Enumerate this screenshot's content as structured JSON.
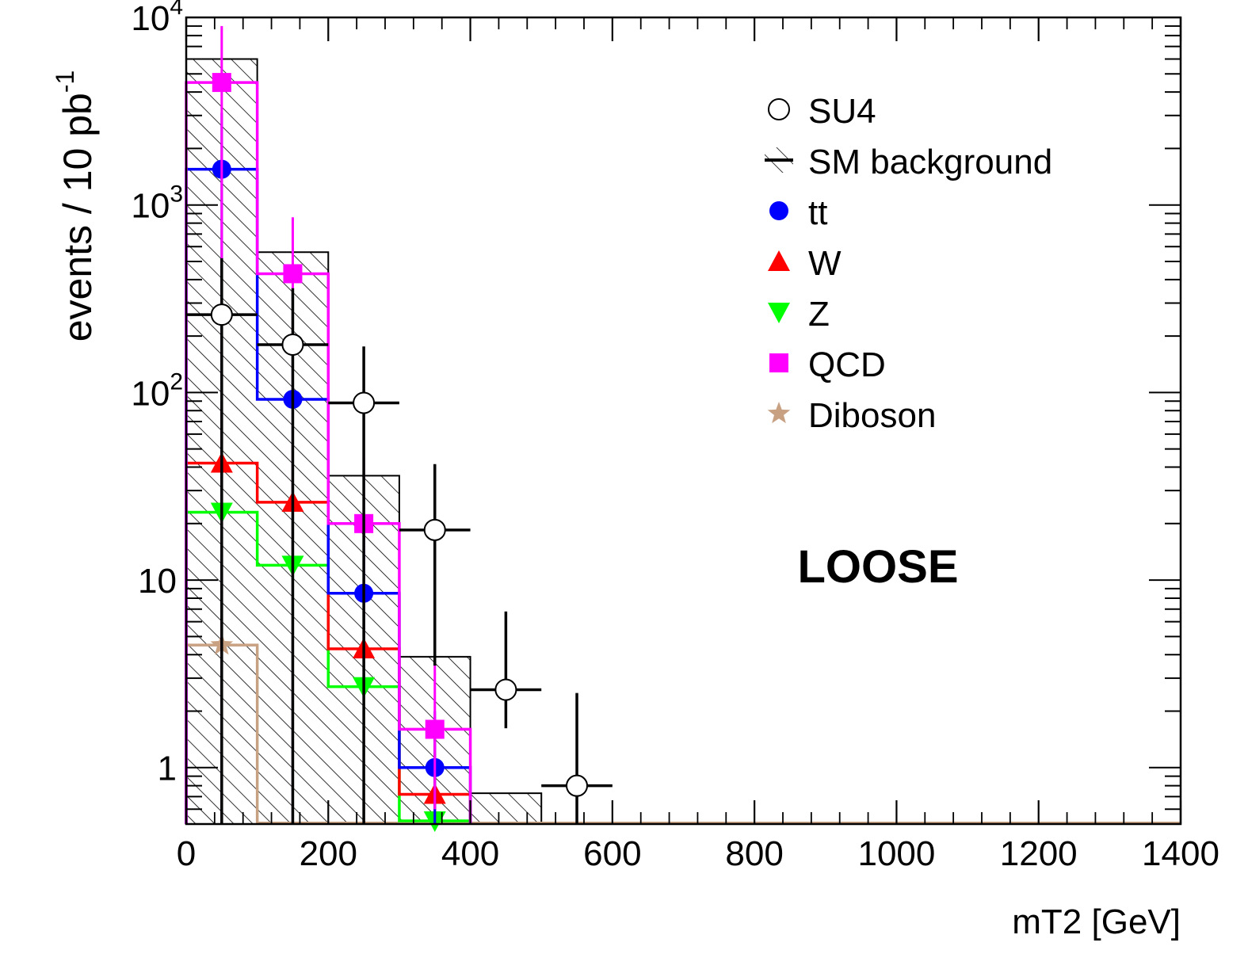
{
  "chart_data": {
    "type": "bar",
    "title": "",
    "xlabel": "mT2 [GeV]",
    "ylabel": "events / 10 pb",
    "ylabel_sup": "-1",
    "xlim": [
      0,
      1400
    ],
    "ylim": [
      0.5,
      10000
    ],
    "yscale": "log",
    "grid": false,
    "legend_position": "top-right",
    "x_ticks": [
      "0",
      "200",
      "400",
      "600",
      "800",
      "1000",
      "1200",
      "1400"
    ],
    "x_tick_values": [
      0,
      200,
      400,
      600,
      800,
      1000,
      1200,
      1400
    ],
    "y_ticks": [
      {
        "value": 10000,
        "base": "10",
        "exp": "4"
      },
      {
        "value": 1000,
        "base": "10",
        "exp": "3"
      },
      {
        "value": 100,
        "base": "10",
        "exp": "2"
      },
      {
        "value": 10,
        "base": "10",
        "exp": ""
      },
      {
        "value": 1,
        "base": "1",
        "exp": ""
      }
    ],
    "bin_edges": [
      0,
      100,
      200,
      300,
      400,
      500,
      600,
      700,
      800,
      900,
      1000,
      1100,
      1200,
      1300,
      1400
    ],
    "annotation": "LOOSE",
    "series": [
      {
        "name": "SM background",
        "style": "hatch",
        "color": "#000000",
        "values": [
          6000,
          560,
          36,
          3.9,
          0.73
        ]
      },
      {
        "name": "QCD",
        "style": "step",
        "marker": "square",
        "color": "#ff00ff",
        "values": [
          4500,
          430,
          20,
          1.6
        ],
        "errors": [
          [
            4500,
            4500
          ],
          [
            430,
            430
          ],
          [
            16,
            25
          ],
          [
            1.0,
            2.8
          ]
        ]
      },
      {
        "name": "tt",
        "style": "step",
        "marker": "circle",
        "color": "#0000ff",
        "values": [
          1550,
          92,
          8.5,
          1.0
        ],
        "errors": [
          [
            1550,
            1550
          ],
          [
            92,
            92
          ],
          [
            6.0,
            11
          ],
          [
            1.0,
            1.0
          ]
        ]
      },
      {
        "name": "W",
        "style": "step",
        "marker": "triangle-up",
        "color": "#ff0000",
        "values": [
          42,
          26,
          4.3,
          0.72
        ],
        "errors": [
          [
            38,
            46
          ],
          [
            22,
            31
          ],
          [
            3.0,
            6.0
          ],
          [
            0.72,
            0.72
          ]
        ]
      },
      {
        "name": "Z",
        "style": "step",
        "marker": "triangle-down",
        "color": "#00ff00",
        "values": [
          23,
          12,
          2.7,
          0.52
        ],
        "errors": [
          [
            17,
            28
          ],
          [
            8.5,
            15
          ],
          [
            1.05,
            4.2
          ],
          [
            0.52,
            0.52
          ]
        ]
      },
      {
        "name": "Diboson",
        "style": "step",
        "marker": "star",
        "color": "#c8a082",
        "values": [
          4.5
        ],
        "errors": [
          [
            2.4,
            6.6
          ]
        ]
      },
      {
        "name": "SU4",
        "style": "points",
        "marker": "open-circle",
        "color": "#000000",
        "x": [
          50,
          150,
          250,
          350,
          450,
          550
        ],
        "values": [
          260,
          180,
          88,
          18.5,
          2.6,
          0.8
        ],
        "errors": [
          [
            260,
            260
          ],
          [
            180,
            180
          ],
          [
            88,
            88
          ],
          [
            15,
            23
          ],
          [
            0.98,
            4.2
          ],
          [
            0.5,
            1.7
          ]
        ]
      }
    ],
    "legend_order": [
      "SU4",
      "SM background",
      "tt",
      "W",
      "Z",
      "QCD",
      "Diboson"
    ]
  }
}
